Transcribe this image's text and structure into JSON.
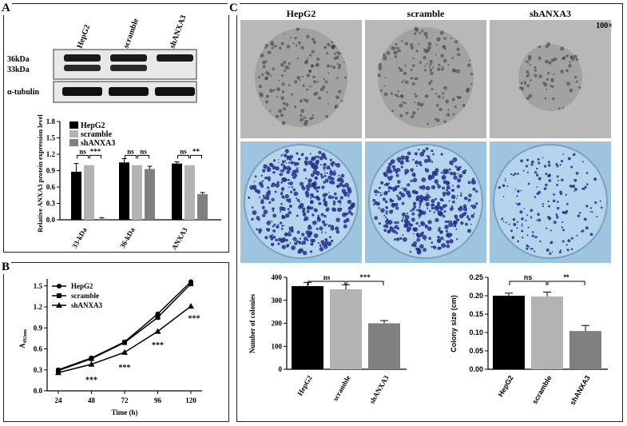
{
  "panels": {
    "a": "A",
    "b": "B",
    "c": "C"
  },
  "western": {
    "lanes": [
      "HepG2",
      "scramble",
      "shANXA3"
    ],
    "band_labels": [
      "36kDa",
      "33kDa",
      "α-tubulin"
    ]
  },
  "colors": {
    "black": "#000000",
    "light_gray": "#b3b3b3",
    "dark_gray": "#808080",
    "plate_bg": "#9ec4e0",
    "colony": "#26308f"
  },
  "chart_a": {
    "type": "bar",
    "categories": [
      "33-kDa",
      "36-kDa",
      "ANXA3"
    ],
    "series": [
      {
        "name": "HepG2",
        "values": [
          0.88,
          1.05,
          1.03
        ],
        "errors": [
          0.15,
          0.07,
          0.03
        ]
      },
      {
        "name": "scramble",
        "values": [
          1.0,
          1.0,
          1.0
        ],
        "errors": [
          0.0,
          0.0,
          0.0
        ]
      },
      {
        "name": "shANXA3",
        "values": [
          0.02,
          0.93,
          0.47
        ],
        "errors": [
          0.02,
          0.05,
          0.03
        ]
      }
    ],
    "ylabel": "Relative ANXA3 protein expression level",
    "ylim": [
      0,
      1.8
    ],
    "yticks": [
      "0.0",
      "0.3",
      "0.6",
      "0.9",
      "1.2",
      "1.5",
      "1.8"
    ],
    "sig": [
      [
        "ns",
        "***"
      ],
      [
        "ns",
        "ns"
      ],
      [
        "ns",
        "**"
      ]
    ]
  },
  "chart_b": {
    "type": "line",
    "x": [
      24,
      48,
      72,
      96,
      120
    ],
    "series": [
      {
        "name": "HepG2",
        "values": [
          0.3,
          0.47,
          0.7,
          1.1,
          1.56
        ]
      },
      {
        "name": "scramble",
        "values": [
          0.29,
          0.46,
          0.69,
          1.05,
          1.53
        ]
      },
      {
        "name": "shANXA3",
        "values": [
          0.26,
          0.38,
          0.55,
          0.85,
          1.21
        ]
      }
    ],
    "xlabel": "Time (h)",
    "ylabel": "A492nm",
    "ylabel_main": "A",
    "ylabel_sub": "492nm",
    "ylim": [
      0.0,
      1.6
    ],
    "yticks": [
      "0.0",
      "0.3",
      "0.6",
      "0.9",
      "1.2",
      "1.5"
    ],
    "xticks": [
      "24",
      "48",
      "72",
      "96",
      "120"
    ],
    "sig": [
      "***",
      "***",
      "***",
      "***"
    ]
  },
  "panel_c": {
    "columns": [
      "HepG2",
      "scramble",
      "shANXA3"
    ],
    "magnification": "100×",
    "plate_counts": [
      430,
      400,
      170
    ]
  },
  "chart_c1": {
    "type": "bar",
    "categories": [
      "HepG2",
      "scramble",
      "shANXA3"
    ],
    "values": [
      362,
      348,
      200
    ],
    "errors": [
      16,
      20,
      12
    ],
    "ylabel": "Number of colonies",
    "ylim": [
      0,
      400
    ],
    "yticks": [
      "0",
      "100",
      "200",
      "300",
      "400"
    ],
    "sig": [
      "ns",
      "***"
    ]
  },
  "chart_c2": {
    "type": "bar",
    "categories": [
      "HepG2",
      "scramble",
      "shANXA3"
    ],
    "values": [
      0.2,
      0.198,
      0.104
    ],
    "errors": [
      0.007,
      0.012,
      0.015
    ],
    "ylabel": "Colony size (cm)",
    "ylim": [
      0,
      0.25
    ],
    "yticks": [
      "0.00",
      "0.05",
      "0.10",
      "0.15",
      "0.20",
      "0.25"
    ],
    "sig": [
      "ns",
      "**"
    ]
  }
}
